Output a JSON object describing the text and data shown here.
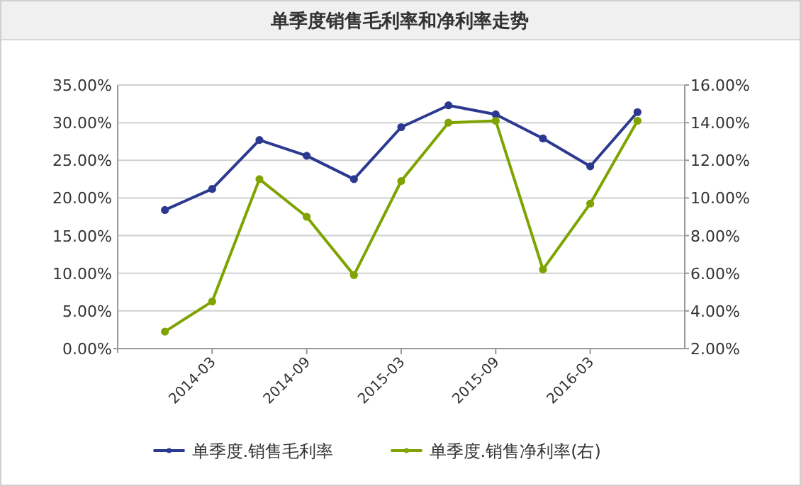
{
  "chart_data": {
    "type": "line",
    "title": "单季度销售毛利率和净利率走势",
    "x": [
      "2013-12",
      "2014-03",
      "2014-06",
      "2014-09",
      "2014-12",
      "2015-03",
      "2015-06",
      "2015-09",
      "2015-12",
      "2016-03",
      "2016-06"
    ],
    "series": [
      {
        "name": "单季度.销售毛利率",
        "color": "#2b3990",
        "values": [
          18.4,
          21.2,
          27.7,
          25.6,
          22.5,
          29.4,
          32.3,
          31.1,
          27.9,
          24.2,
          31.4
        ]
      },
      {
        "name": "单季度.销售净利率(右)",
        "color": "#7fa300",
        "axis": "y2",
        "values": [
          2.9,
          4.5,
          11.0,
          9.0,
          5.9,
          10.9,
          14.0,
          14.1,
          6.2,
          9.7,
          14.1
        ]
      }
    ],
    "xlim": [
      "2013-09",
      "2016-09"
    ],
    "xticks": [
      "2014-03",
      "2014-09",
      "2015-03",
      "2015-09",
      "2016-03"
    ],
    "ylim": [
      0,
      35
    ],
    "yticks": [
      {
        "value": 0,
        "label": "0.00%"
      },
      {
        "value": 5,
        "label": "5.00%"
      },
      {
        "value": 10,
        "label": "10.00%"
      },
      {
        "value": 15,
        "label": "15.00%"
      },
      {
        "value": 20,
        "label": "20.00%"
      },
      {
        "value": 25,
        "label": "25.00%"
      },
      {
        "value": 30,
        "label": "30.00%"
      },
      {
        "value": 35,
        "label": "35.00%"
      }
    ],
    "y2lim": [
      2,
      16
    ],
    "y2ticks": [
      {
        "value": 2,
        "label": "2.00%"
      },
      {
        "value": 4,
        "label": "4.00%"
      },
      {
        "value": 6,
        "label": "6.00%"
      },
      {
        "value": 8,
        "label": "8.00%"
      },
      {
        "value": 10,
        "label": "10.00%"
      },
      {
        "value": 12,
        "label": "12.00%"
      },
      {
        "value": 14,
        "label": "14.00%"
      },
      {
        "value": 16,
        "label": "16.00%"
      }
    ],
    "grid": "y",
    "legend": "bottom",
    "marker": "circle",
    "line_style": "solid"
  }
}
